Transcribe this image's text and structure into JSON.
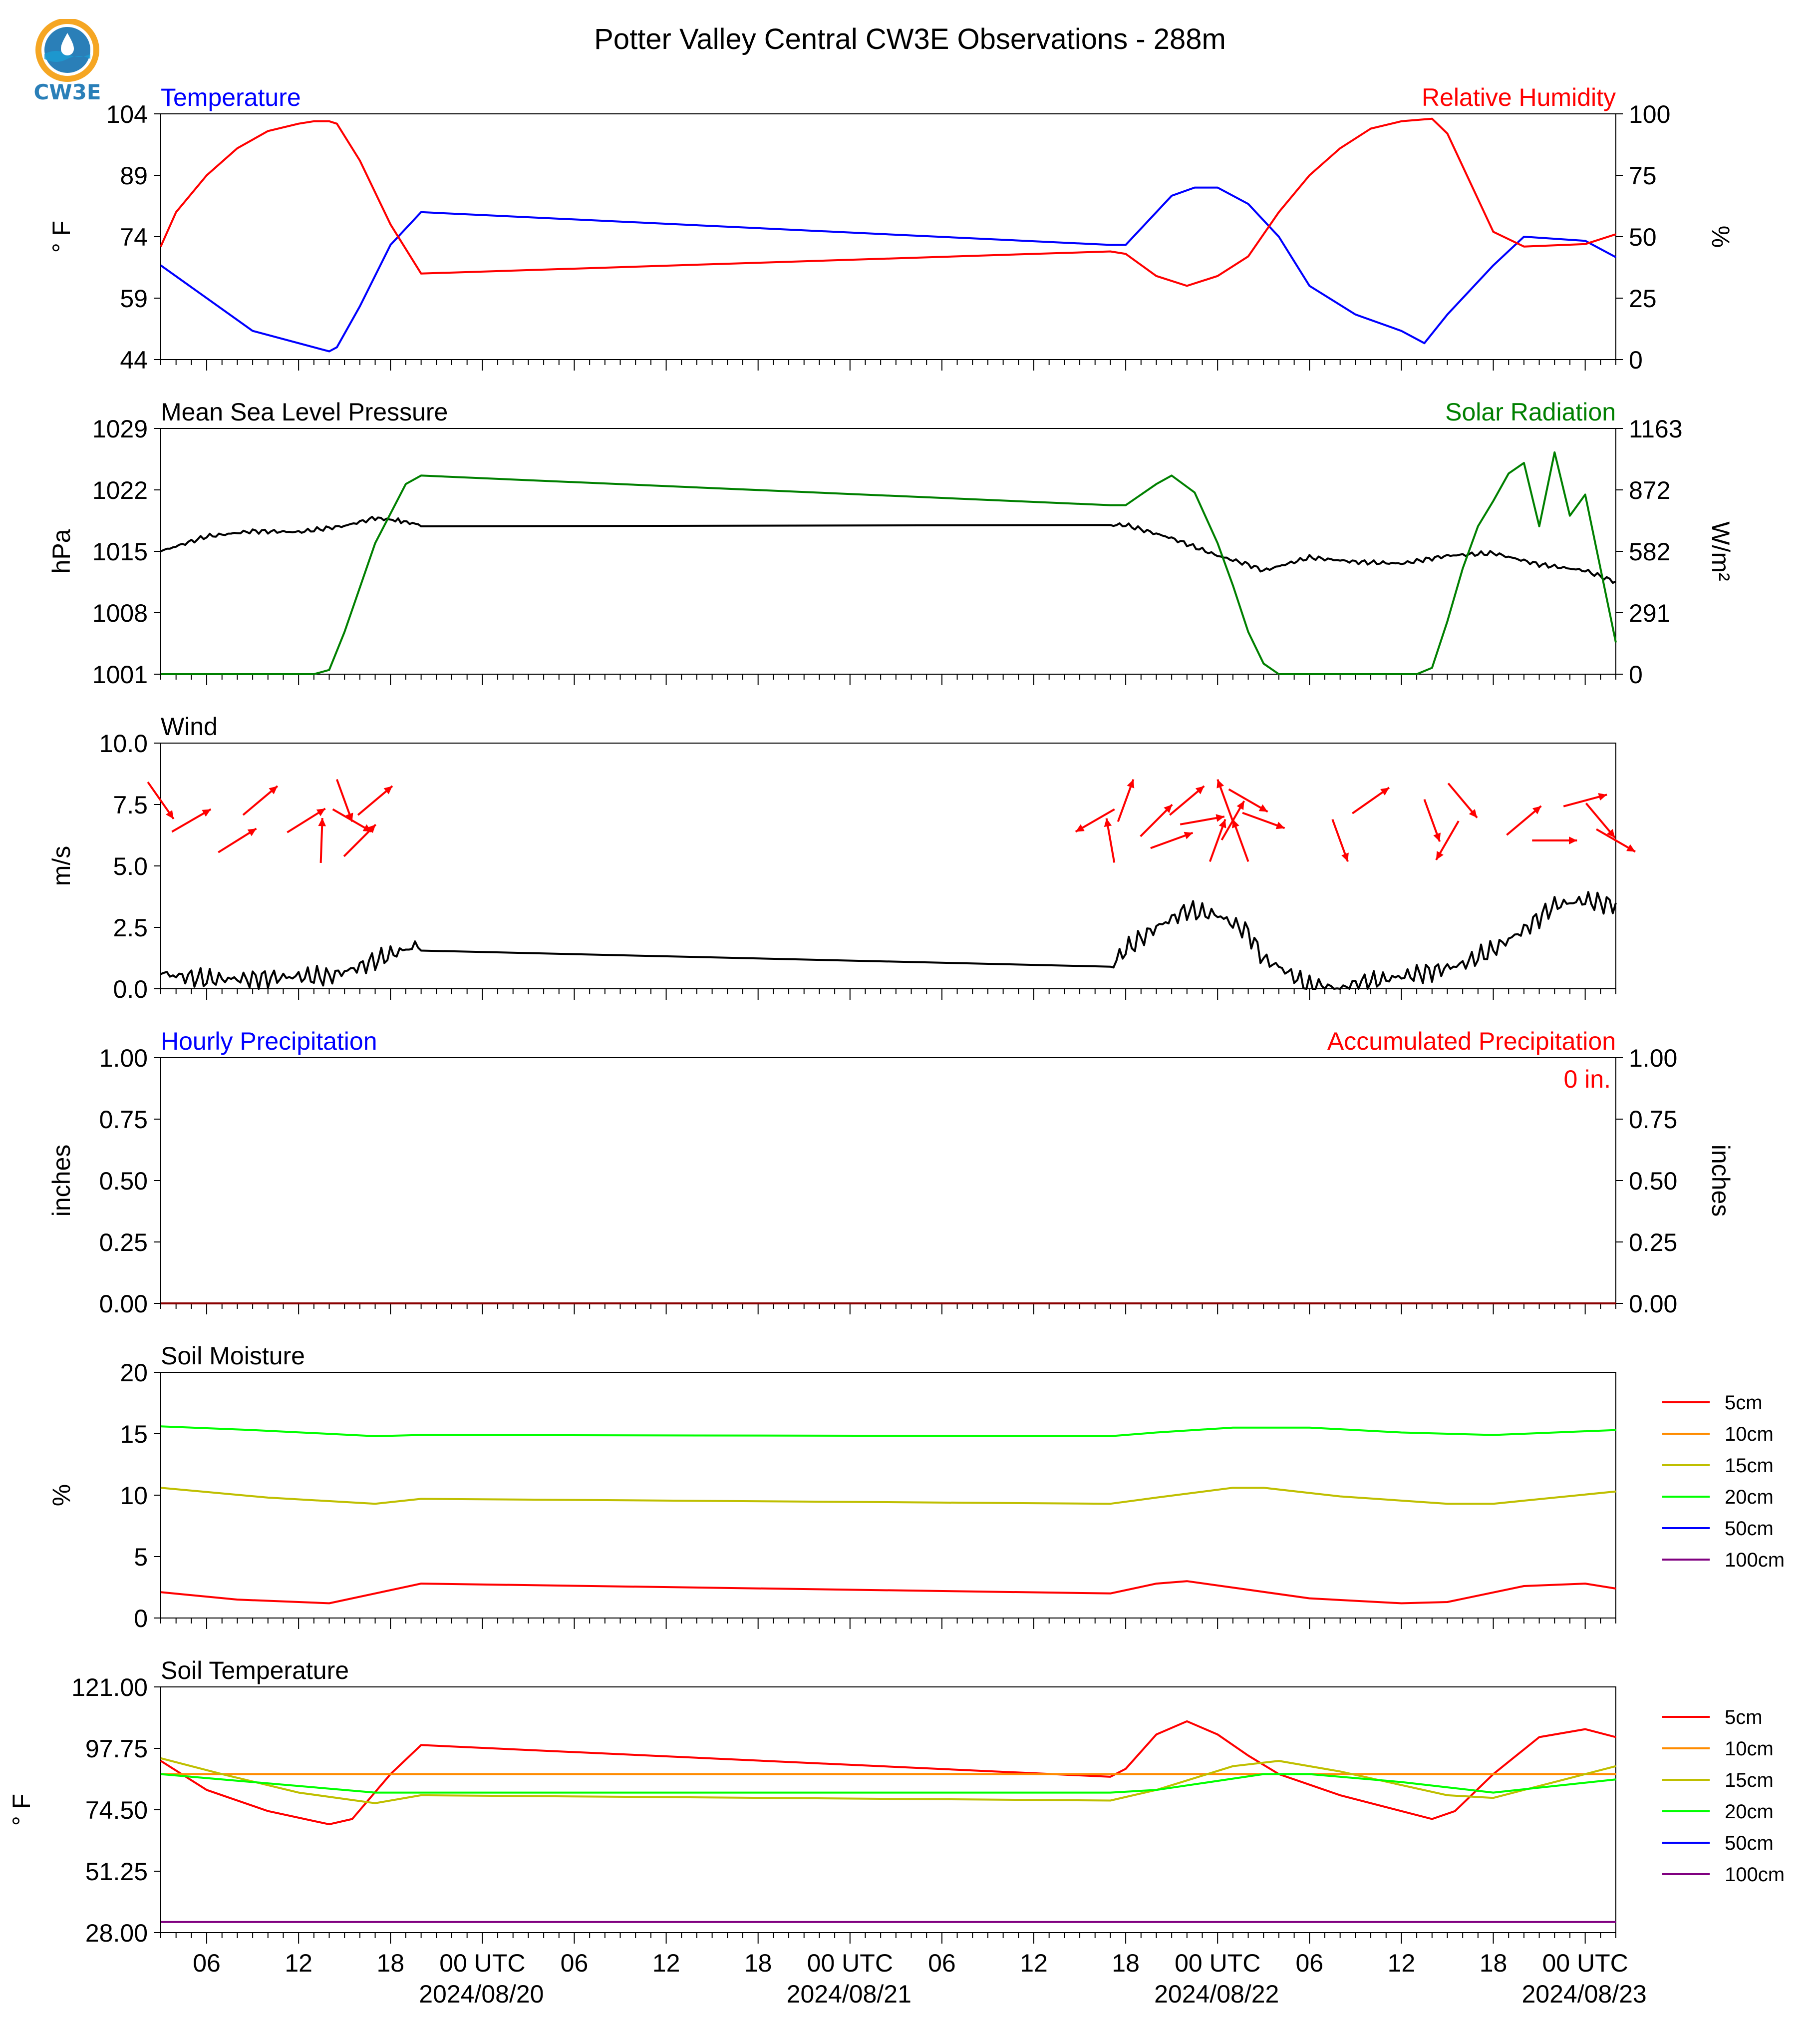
{
  "title": "Potter Valley Central CW3E Observations - 288m",
  "logo": {
    "text": "CW3E",
    "colors": {
      "ring": "#f5a623",
      "globe": "#2a7fb8",
      "wave": "#1b9bd1",
      "text": "#2a7fb8"
    }
  },
  "x_axis": {
    "hour_ticks": [
      "06",
      "12",
      "18",
      "00 UTC",
      "06",
      "12",
      "18",
      "00 UTC",
      "06",
      "12",
      "18",
      "00 UTC",
      "06",
      "12",
      "18",
      "00 UTC"
    ],
    "date_labels": [
      "2024/08/20",
      "2024/08/21",
      "2024/08/22",
      "2024/08/23"
    ]
  },
  "chart_data": [
    {
      "id": "temp_rh",
      "type": "line",
      "title_left": "Temperature",
      "title_right": "Relative Humidity",
      "ylabel": "° F",
      "ylabel_right": "%",
      "yticks": [
        "104",
        "89",
        "74",
        "59",
        "44"
      ],
      "yticks_right": [
        "100",
        "75",
        "50",
        "25",
        "0"
      ],
      "ylim": [
        44,
        104
      ],
      "ylim_right": [
        0,
        100
      ],
      "series": [
        {
          "name": "Temperature",
          "color": "#0000ff",
          "axis": "left",
          "x": [
            "2024-08-19T03:00",
            "2024-08-19T06:00",
            "2024-08-19T09:00",
            "2024-08-19T12:00",
            "2024-08-19T14:00",
            "2024-08-19T14:30",
            "2024-08-19T16:00",
            "2024-08-19T18:00",
            "2024-08-19T20:00",
            "2024-08-21T17:00",
            "2024-08-21T18:00",
            "2024-08-21T21:00",
            "2024-08-21T22:30",
            "2024-08-22T00:00",
            "2024-08-22T02:00",
            "2024-08-22T04:00",
            "2024-08-22T06:00",
            "2024-08-22T09:00",
            "2024-08-22T12:00",
            "2024-08-22T13:30",
            "2024-08-22T15:00",
            "2024-08-22T18:00",
            "2024-08-22T20:00",
            "2024-08-23T00:00",
            "2024-08-23T02:00"
          ],
          "y": [
            67,
            59,
            51,
            48,
            46,
            47,
            57,
            72,
            80,
            72,
            72,
            84,
            86,
            86,
            82,
            74,
            62,
            55,
            51,
            48,
            55,
            67,
            74,
            73,
            69
          ]
        },
        {
          "name": "Relative Humidity",
          "color": "#ff0000",
          "axis": "right",
          "x": [
            "2024-08-19T03:00",
            "2024-08-19T04:00",
            "2024-08-19T06:00",
            "2024-08-19T08:00",
            "2024-08-19T10:00",
            "2024-08-19T12:00",
            "2024-08-19T13:00",
            "2024-08-19T14:00",
            "2024-08-19T14:30",
            "2024-08-19T16:00",
            "2024-08-19T18:00",
            "2024-08-19T20:00",
            "2024-08-21T17:00",
            "2024-08-21T18:00",
            "2024-08-21T20:00",
            "2024-08-21T22:00",
            "2024-08-22T00:00",
            "2024-08-22T02:00",
            "2024-08-22T04:00",
            "2024-08-22T06:00",
            "2024-08-22T08:00",
            "2024-08-22T10:00",
            "2024-08-22T12:00",
            "2024-08-22T14:00",
            "2024-08-22T15:00",
            "2024-08-22T18:00",
            "2024-08-22T20:00",
            "2024-08-23T00:00",
            "2024-08-23T02:00"
          ],
          "y": [
            46,
            60,
            75,
            86,
            93,
            96,
            97,
            97,
            96,
            81,
            55,
            35,
            44,
            43,
            34,
            30,
            34,
            42,
            60,
            75,
            86,
            94,
            97,
            98,
            92,
            52,
            46,
            47,
            51
          ]
        }
      ]
    },
    {
      "id": "pressure_solar",
      "type": "line",
      "title_left": "Mean Sea Level Pressure",
      "title_right": "Solar Radiation",
      "ylabel": "hPa",
      "ylabel_right": "W/m²",
      "yticks": [
        "1029",
        "1022",
        "1015",
        "1008",
        "1001"
      ],
      "yticks_right": [
        "1163",
        "872",
        "582",
        "291",
        "0"
      ],
      "ylim": [
        1001,
        1029
      ],
      "ylim_right": [
        0,
        1163
      ],
      "series": [
        {
          "name": "Mean Sea Level Pressure",
          "color": "#000000",
          "axis": "left",
          "x": [
            "2024-08-19T03:00",
            "2024-08-19T06:00",
            "2024-08-19T09:00",
            "2024-08-19T12:00",
            "2024-08-19T15:00",
            "2024-08-19T17:00",
            "2024-08-19T18:30",
            "2024-08-19T20:00",
            "2024-08-21T17:00",
            "2024-08-21T18:00",
            "2024-08-21T21:00",
            "2024-08-22T00:00",
            "2024-08-22T02:00",
            "2024-08-22T03:00",
            "2024-08-22T06:00",
            "2024-08-22T09:00",
            "2024-08-22T12:00",
            "2024-08-22T15:00",
            "2024-08-22T18:00",
            "2024-08-22T21:00",
            "2024-08-23T00:00",
            "2024-08-23T02:00"
          ],
          "y": [
            1015,
            1016.7,
            1017.3,
            1017.2,
            1017.9,
            1018.8,
            1018.5,
            1018,
            1018,
            1018,
            1016.5,
            1014.5,
            1013.5,
            1012.8,
            1014.3,
            1013.8,
            1013.6,
            1014.5,
            1014.8,
            1013.5,
            1012.8,
            1011.5
          ]
        },
        {
          "name": "Solar Radiation",
          "color": "#008000",
          "axis": "right",
          "x": [
            "2024-08-19T03:00",
            "2024-08-19T13:00",
            "2024-08-19T14:00",
            "2024-08-19T15:00",
            "2024-08-19T17:00",
            "2024-08-19T19:00",
            "2024-08-19T20:00",
            "2024-08-21T17:00",
            "2024-08-21T18:00",
            "2024-08-21T20:00",
            "2024-08-21T21:00",
            "2024-08-21T22:30",
            "2024-08-22T00:00",
            "2024-08-22T01:00",
            "2024-08-22T02:00",
            "2024-08-22T03:00",
            "2024-08-22T04:00",
            "2024-08-22T13:00",
            "2024-08-22T14:00",
            "2024-08-22T15:00",
            "2024-08-22T16:00",
            "2024-08-22T17:00",
            "2024-08-22T18:00",
            "2024-08-22T19:00",
            "2024-08-22T20:00",
            "2024-08-22T21:00",
            "2024-08-22T22:00",
            "2024-08-22T23:00",
            "2024-08-23T00:00",
            "2024-08-23T01:00",
            "2024-08-23T02:00"
          ],
          "y": [
            0,
            0,
            20,
            200,
            620,
            900,
            940,
            800,
            800,
            900,
            940,
            860,
            620,
            420,
            200,
            50,
            0,
            0,
            30,
            250,
            500,
            700,
            820,
            950,
            1000,
            700,
            1050,
            750,
            850,
            500,
            150
          ]
        }
      ]
    },
    {
      "id": "wind",
      "type": "line",
      "title_left": "Wind",
      "ylabel": "m/s",
      "yticks": [
        "10.0",
        "7.5",
        "5.0",
        "2.5",
        "0.0"
      ],
      "ylim": [
        0,
        10
      ],
      "series": [
        {
          "name": "Wind Speed",
          "color": "#000000",
          "x": [
            "2024-08-19T03:00",
            "2024-08-19T06:00",
            "2024-08-19T09:00",
            "2024-08-19T12:00",
            "2024-08-19T14:00",
            "2024-08-19T16:00",
            "2024-08-19T18:00",
            "2024-08-19T20:00",
            "2024-08-21T17:00",
            "2024-08-21T18:00",
            "2024-08-21T20:00",
            "2024-08-21T22:00",
            "2024-08-22T00:00",
            "2024-08-22T02:00",
            "2024-08-22T03:00",
            "2024-08-22T04:00",
            "2024-08-22T06:00",
            "2024-08-22T08:00",
            "2024-08-22T10:00",
            "2024-08-22T12:00",
            "2024-08-22T14:00",
            "2024-08-22T16:00",
            "2024-08-22T18:00",
            "2024-08-22T20:00",
            "2024-08-22T22:00",
            "2024-08-23T00:00",
            "2024-08-23T02:00"
          ],
          "y": [
            0.6,
            0.4,
            0.4,
            0.5,
            0.5,
            0.9,
            1.4,
            1.8,
            0.9,
            1.6,
            2.5,
            3.2,
            3.0,
            2.3,
            1.2,
            0.9,
            0.1,
            0.0,
            0.3,
            0.5,
            0.7,
            1.0,
            1.6,
            2.4,
            3.4,
            3.6,
            3.4
          ]
        }
      ],
      "wind_barbs": [
        {
          "x": "2024-08-19T03:00",
          "dir_deg": 325
        },
        {
          "x": "2024-08-19T05:00",
          "dir_deg": 240
        },
        {
          "x": "2024-08-19T08:00",
          "dir_deg": 238
        },
        {
          "x": "2024-08-19T09:30",
          "dir_deg": 230
        },
        {
          "x": "2024-08-19T12:30",
          "dir_deg": 238
        },
        {
          "x": "2024-08-19T13:30",
          "dir_deg": 182
        },
        {
          "x": "2024-08-19T15:00",
          "dir_deg": 340
        },
        {
          "x": "2024-08-19T15:30",
          "dir_deg": 300
        },
        {
          "x": "2024-08-19T16:00",
          "dir_deg": 225
        },
        {
          "x": "2024-08-19T17:00",
          "dir_deg": 230
        },
        {
          "x": "2024-08-21T16:00",
          "dir_deg": 60
        },
        {
          "x": "2024-08-21T17:00",
          "dir_deg": 170
        },
        {
          "x": "2024-08-21T18:00",
          "dir_deg": 200
        },
        {
          "x": "2024-08-21T20:00",
          "dir_deg": 225
        },
        {
          "x": "2024-08-21T21:00",
          "dir_deg": 250
        },
        {
          "x": "2024-08-21T22:00",
          "dir_deg": 230
        },
        {
          "x": "2024-08-21T23:00",
          "dir_deg": 260
        },
        {
          "x": "2024-08-22T00:00",
          "dir_deg": 200
        },
        {
          "x": "2024-08-22T00:30",
          "dir_deg": 160
        },
        {
          "x": "2024-08-22T01:00",
          "dir_deg": 210
        },
        {
          "x": "2024-08-22T01:30",
          "dir_deg": 160
        },
        {
          "x": "2024-08-22T02:00",
          "dir_deg": 300
        },
        {
          "x": "2024-08-22T03:00",
          "dir_deg": 290
        },
        {
          "x": "2024-08-22T08:00",
          "dir_deg": 340
        },
        {
          "x": "2024-08-22T10:00",
          "dir_deg": 235
        },
        {
          "x": "2024-08-22T14:00",
          "dir_deg": 340
        },
        {
          "x": "2024-08-22T15:00",
          "dir_deg": 30
        },
        {
          "x": "2024-08-22T16:00",
          "dir_deg": 320
        },
        {
          "x": "2024-08-22T20:00",
          "dir_deg": 230
        },
        {
          "x": "2024-08-22T22:00",
          "dir_deg": 270
        },
        {
          "x": "2024-08-23T00:00",
          "dir_deg": 255
        },
        {
          "x": "2024-08-23T01:00",
          "dir_deg": 320
        },
        {
          "x": "2024-08-23T02:00",
          "dir_deg": 300
        }
      ]
    },
    {
      "id": "precip",
      "type": "bar",
      "title_left": "Hourly Precipitation",
      "title_right": "Accumulated Precipitation",
      "annotation": "0 in.",
      "ylabel": "inches",
      "ylabel_right": "inches",
      "yticks": [
        "1.00",
        "0.75",
        "0.50",
        "0.25",
        "0.00"
      ],
      "yticks_right": [
        "1.00",
        "0.75",
        "0.50",
        "0.25",
        "0.00"
      ],
      "ylim": [
        0,
        1
      ],
      "ylim_right": [
        0,
        1
      ],
      "series": [
        {
          "name": "Accumulated Precipitation",
          "color": "#8b0000",
          "axis": "right",
          "x": [
            "2024-08-19T03:00",
            "2024-08-23T02:00"
          ],
          "y": [
            0,
            0
          ]
        }
      ]
    },
    {
      "id": "soil_moisture",
      "type": "line",
      "title_left": "Soil Moisture",
      "ylabel": "%",
      "yticks": [
        "20",
        "15",
        "10",
        "5",
        "0"
      ],
      "ylim": [
        0,
        20
      ],
      "legend": [
        "5cm",
        "10cm",
        "15cm",
        "20cm",
        "50cm",
        "100cm"
      ],
      "legend_position": "right",
      "series": [
        {
          "name": "5cm",
          "color": "#ff0000",
          "x": [
            "2024-08-19T03:00",
            "2024-08-19T08:00",
            "2024-08-19T14:00",
            "2024-08-19T17:00",
            "2024-08-19T20:00",
            "2024-08-21T17:00",
            "2024-08-21T20:00",
            "2024-08-21T22:00",
            "2024-08-22T02:00",
            "2024-08-22T06:00",
            "2024-08-22T12:00",
            "2024-08-22T15:00",
            "2024-08-22T20:00",
            "2024-08-23T00:00",
            "2024-08-23T02:00"
          ],
          "y": [
            2.1,
            1.5,
            1.2,
            2.0,
            2.8,
            2.0,
            2.8,
            3.0,
            2.3,
            1.6,
            1.2,
            1.3,
            2.6,
            2.8,
            2.4
          ]
        },
        {
          "name": "15cm",
          "color": "#bfbf00",
          "x": [
            "2024-08-19T03:00",
            "2024-08-19T10:00",
            "2024-08-19T17:00",
            "2024-08-19T20:00",
            "2024-08-21T17:00",
            "2024-08-21T20:00",
            "2024-08-22T01:00",
            "2024-08-22T03:00",
            "2024-08-22T08:00",
            "2024-08-22T15:00",
            "2024-08-22T18:00",
            "2024-08-23T02:00"
          ],
          "y": [
            10.6,
            9.8,
            9.3,
            9.7,
            9.3,
            9.8,
            10.6,
            10.6,
            9.9,
            9.3,
            9.3,
            10.3
          ]
        },
        {
          "name": "20cm",
          "color": "#00ff00",
          "x": [
            "2024-08-19T03:00",
            "2024-08-19T09:00",
            "2024-08-19T17:00",
            "2024-08-19T20:00",
            "2024-08-21T17:00",
            "2024-08-21T20:00",
            "2024-08-22T01:00",
            "2024-08-22T06:00",
            "2024-08-22T12:00",
            "2024-08-22T18:00",
            "2024-08-23T02:00"
          ],
          "y": [
            15.6,
            15.3,
            14.8,
            14.9,
            14.8,
            15.1,
            15.5,
            15.5,
            15.1,
            14.9,
            15.3
          ]
        }
      ]
    },
    {
      "id": "soil_temperature",
      "type": "line",
      "title_left": "Soil Temperature",
      "ylabel": "° F",
      "yticks": [
        "121.00",
        "97.75",
        "74.50",
        "51.25",
        "28.00"
      ],
      "ylim": [
        28,
        121
      ],
      "legend": [
        "5cm",
        "10cm",
        "15cm",
        "20cm",
        "50cm",
        "100cm"
      ],
      "legend_position": "right",
      "series": [
        {
          "name": "5cm",
          "color": "#ff0000",
          "x": [
            "2024-08-19T03:00",
            "2024-08-19T06:00",
            "2024-08-19T10:00",
            "2024-08-19T14:00",
            "2024-08-19T15:30",
            "2024-08-19T18:00",
            "2024-08-19T20:00",
            "2024-08-21T17:00",
            "2024-08-21T18:00",
            "2024-08-21T20:00",
            "2024-08-21T22:00",
            "2024-08-22T00:00",
            "2024-08-22T02:00",
            "2024-08-22T04:00",
            "2024-08-22T08:00",
            "2024-08-22T14:00",
            "2024-08-22T15:30",
            "2024-08-22T18:00",
            "2024-08-22T21:00",
            "2024-08-23T00:00",
            "2024-08-23T02:00"
          ],
          "y": [
            93,
            82,
            74,
            69,
            71,
            88,
            99,
            87,
            90,
            103,
            108,
            103,
            95,
            88,
            80,
            71,
            74,
            88,
            102,
            105,
            102
          ]
        },
        {
          "name": "10cm",
          "color": "#ff8c00",
          "x": [
            "2024-08-19T03:00",
            "2024-08-23T02:00"
          ],
          "y": [
            88,
            88
          ]
        },
        {
          "name": "15cm",
          "color": "#bfbf00",
          "x": [
            "2024-08-19T03:00",
            "2024-08-19T07:00",
            "2024-08-19T12:00",
            "2024-08-19T17:00",
            "2024-08-19T20:00",
            "2024-08-21T17:00",
            "2024-08-21T20:00",
            "2024-08-22T01:00",
            "2024-08-22T04:00",
            "2024-08-22T08:00",
            "2024-08-22T15:00",
            "2024-08-22T18:00",
            "2024-08-23T00:00",
            "2024-08-23T02:00"
          ],
          "y": [
            94,
            88,
            81,
            77,
            80,
            78,
            82,
            91,
            93,
            89,
            80,
            79,
            88,
            91
          ]
        },
        {
          "name": "20cm",
          "color": "#00ff00",
          "x": [
            "2024-08-19T03:00",
            "2024-08-19T09:00",
            "2024-08-19T17:00",
            "2024-08-19T20:00",
            "2024-08-21T17:00",
            "2024-08-21T20:00",
            "2024-08-22T03:00",
            "2024-08-22T06:00",
            "2024-08-22T12:00",
            "2024-08-22T18:00",
            "2024-08-23T02:00"
          ],
          "y": [
            88,
            85,
            81,
            81,
            81,
            82,
            88,
            88,
            85,
            81,
            86
          ]
        },
        {
          "name": "100cm",
          "color": "#800080",
          "x": [
            "2024-08-19T03:00",
            "2024-08-23T02:00"
          ],
          "y": [
            32,
            32
          ]
        }
      ]
    }
  ]
}
